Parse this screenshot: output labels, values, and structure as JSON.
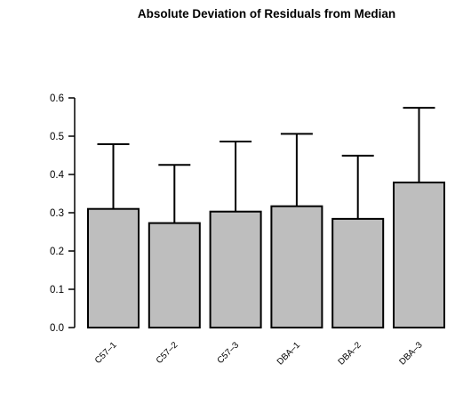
{
  "chart_data": {
    "type": "bar",
    "title": "Absolute Deviation of Residuals from Median",
    "xlabel": "",
    "ylabel": "",
    "categories": [
      "C57–1",
      "C57–2",
      "C57–3",
      "DBA–1",
      "DBA–2",
      "DBA–3"
    ],
    "values": [
      0.31,
      0.273,
      0.303,
      0.317,
      0.284,
      0.379
    ],
    "error_upper": [
      0.479,
      0.425,
      0.486,
      0.506,
      0.449,
      0.574
    ],
    "ylim": [
      0,
      0.6
    ],
    "yticks": [
      0.0,
      0.1,
      0.2,
      0.3,
      0.4,
      0.5,
      0.6
    ],
    "ytick_labels": [
      "0.0",
      "0.1",
      "0.2",
      "0.3",
      "0.4",
      "0.5",
      "0.6"
    ],
    "grid": false,
    "legend": "none",
    "bar_color": "#bebebe",
    "line_color": "#000000"
  }
}
